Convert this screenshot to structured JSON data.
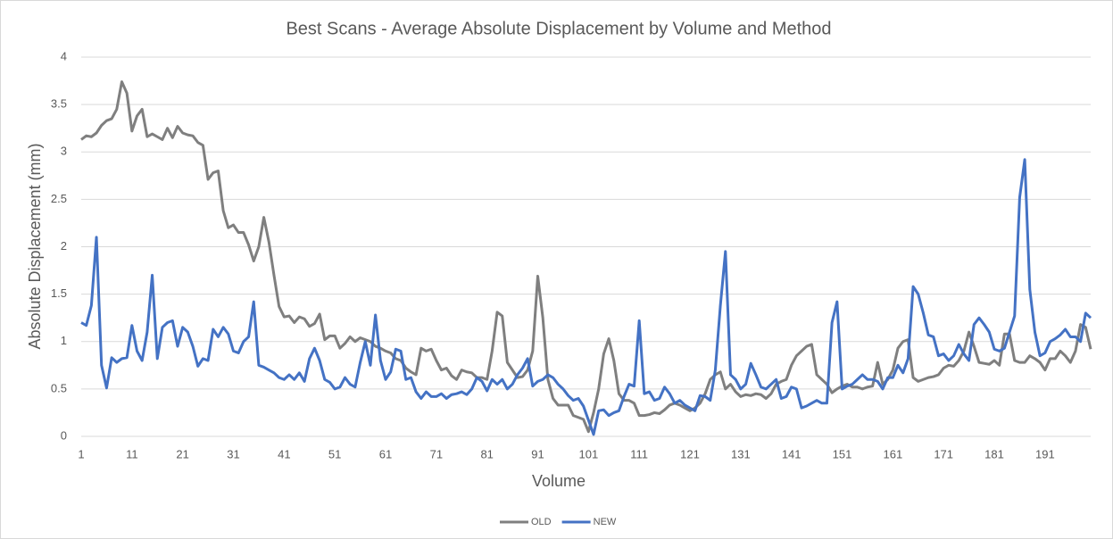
{
  "chart_data": {
    "type": "line",
    "title": "Best Scans - Average Absolute Displacement by Volume and Method",
    "xlabel": "Volume",
    "ylabel": "Absolute Displacement (mm)",
    "x": [
      1,
      2,
      3,
      4,
      5,
      6,
      7,
      8,
      9,
      10,
      11,
      12,
      13,
      14,
      15,
      16,
      17,
      18,
      19,
      20,
      21,
      22,
      23,
      24,
      25,
      26,
      27,
      28,
      29,
      30,
      31,
      32,
      33,
      34,
      35,
      36,
      37,
      38,
      39,
      40,
      41,
      42,
      43,
      44,
      45,
      46,
      47,
      48,
      49,
      50,
      51,
      52,
      53,
      54,
      55,
      56,
      57,
      58,
      59,
      60,
      61,
      62,
      63,
      64,
      65,
      66,
      67,
      68,
      69,
      70,
      71,
      72,
      73,
      74,
      75,
      76,
      77,
      78,
      79,
      80,
      81,
      82,
      83,
      84,
      85,
      86,
      87,
      88,
      89,
      90,
      91,
      92,
      93,
      94,
      95,
      96,
      97,
      98,
      99,
      100,
      101,
      102,
      103,
      104,
      105,
      106,
      107,
      108,
      109,
      110,
      111,
      112,
      113,
      114,
      115,
      116,
      117,
      118,
      119,
      120,
      121,
      122,
      123,
      124,
      125,
      126,
      127,
      128,
      129,
      130,
      131,
      132,
      133,
      134,
      135,
      136,
      137,
      138,
      139,
      140,
      141,
      142,
      143,
      144,
      145,
      146,
      147,
      148,
      149,
      150,
      151,
      152,
      153,
      154,
      155,
      156,
      157,
      158,
      159,
      160,
      161,
      162,
      163,
      164,
      165,
      166,
      167,
      168,
      169,
      170,
      171,
      172,
      173,
      174,
      175,
      176,
      177,
      178,
      179,
      180,
      181,
      182,
      183,
      184,
      185,
      186,
      187,
      188,
      189,
      190,
      191,
      192,
      193,
      194,
      195,
      196,
      197,
      198,
      199,
      200
    ],
    "series": [
      {
        "name": "OLD",
        "color": "#7f7f7f",
        "values": [
          3.13,
          3.17,
          3.16,
          3.2,
          3.28,
          3.33,
          3.35,
          3.45,
          3.74,
          3.62,
          3.22,
          3.38,
          3.45,
          3.16,
          3.19,
          3.16,
          3.13,
          3.25,
          3.15,
          3.27,
          3.2,
          3.18,
          3.17,
          3.1,
          3.07,
          2.71,
          2.78,
          2.8,
          2.38,
          2.2,
          2.23,
          2.15,
          2.15,
          2.02,
          1.85,
          2.0,
          2.31,
          2.05,
          1.7,
          1.37,
          1.26,
          1.27,
          1.2,
          1.26,
          1.24,
          1.16,
          1.19,
          1.29,
          1.02,
          1.06,
          1.06,
          0.93,
          0.98,
          1.05,
          1.0,
          1.04,
          1.02,
          1.0,
          0.95,
          0.93,
          0.9,
          0.88,
          0.82,
          0.8,
          0.72,
          0.68,
          0.65,
          0.93,
          0.9,
          0.92,
          0.8,
          0.7,
          0.72,
          0.64,
          0.6,
          0.7,
          0.68,
          0.67,
          0.62,
          0.62,
          0.6,
          0.9,
          1.31,
          1.27,
          0.78,
          0.7,
          0.62,
          0.63,
          0.7,
          0.9,
          1.69,
          1.25,
          0.6,
          0.4,
          0.33,
          0.33,
          0.33,
          0.22,
          0.2,
          0.18,
          0.05,
          0.25,
          0.5,
          0.87,
          1.03,
          0.8,
          0.45,
          0.38,
          0.38,
          0.35,
          0.22,
          0.22,
          0.23,
          0.25,
          0.24,
          0.28,
          0.33,
          0.35,
          0.33,
          0.3,
          0.27,
          0.3,
          0.35,
          0.45,
          0.6,
          0.65,
          0.68,
          0.5,
          0.55,
          0.47,
          0.42,
          0.44,
          0.43,
          0.45,
          0.44,
          0.4,
          0.45,
          0.55,
          0.58,
          0.6,
          0.75,
          0.85,
          0.9,
          0.95,
          0.97,
          0.65,
          0.6,
          0.55,
          0.46,
          0.5,
          0.53,
          0.55,
          0.52,
          0.52,
          0.5,
          0.52,
          0.53,
          0.78,
          0.55,
          0.6,
          0.7,
          0.93,
          1.0,
          1.02,
          0.62,
          0.58,
          0.6,
          0.62,
          0.63,
          0.65,
          0.72,
          0.75,
          0.74,
          0.8,
          0.9,
          1.1,
          0.95,
          0.78,
          0.77,
          0.76,
          0.8,
          0.75,
          1.08,
          1.08,
          0.8,
          0.78,
          0.78,
          0.85,
          0.82,
          0.78,
          0.7,
          0.82,
          0.82,
          0.9,
          0.85,
          0.78,
          0.9,
          1.18,
          1.15,
          0.92
        ]
      },
      {
        "name": "NEW",
        "color": "#4472c4",
        "values": [
          1.2,
          1.17,
          1.38,
          2.1,
          0.75,
          0.51,
          0.83,
          0.78,
          0.82,
          0.83,
          1.17,
          0.9,
          0.8,
          1.1,
          1.7,
          0.82,
          1.15,
          1.2,
          1.22,
          0.95,
          1.15,
          1.1,
          0.95,
          0.74,
          0.82,
          0.8,
          1.13,
          1.05,
          1.15,
          1.08,
          0.9,
          0.88,
          1.0,
          1.05,
          1.42,
          0.75,
          0.73,
          0.7,
          0.67,
          0.62,
          0.6,
          0.65,
          0.6,
          0.67,
          0.58,
          0.82,
          0.93,
          0.8,
          0.6,
          0.57,
          0.5,
          0.52,
          0.62,
          0.55,
          0.52,
          0.78,
          1.0,
          0.75,
          1.28,
          0.8,
          0.6,
          0.68,
          0.92,
          0.9,
          0.6,
          0.62,
          0.47,
          0.4,
          0.47,
          0.42,
          0.42,
          0.45,
          0.4,
          0.44,
          0.45,
          0.47,
          0.44,
          0.5,
          0.62,
          0.58,
          0.48,
          0.6,
          0.55,
          0.6,
          0.5,
          0.55,
          0.65,
          0.72,
          0.82,
          0.53,
          0.58,
          0.6,
          0.65,
          0.62,
          0.55,
          0.5,
          0.43,
          0.38,
          0.4,
          0.32,
          0.17,
          0.02,
          0.27,
          0.28,
          0.22,
          0.25,
          0.27,
          0.42,
          0.55,
          0.53,
          1.22,
          0.45,
          0.47,
          0.38,
          0.4,
          0.52,
          0.45,
          0.35,
          0.38,
          0.33,
          0.3,
          0.27,
          0.43,
          0.42,
          0.38,
          0.7,
          1.38,
          1.95,
          0.65,
          0.6,
          0.5,
          0.55,
          0.77,
          0.65,
          0.52,
          0.5,
          0.55,
          0.6,
          0.4,
          0.42,
          0.52,
          0.5,
          0.3,
          0.32,
          0.35,
          0.38,
          0.35,
          0.35,
          1.2,
          1.42,
          0.5,
          0.53,
          0.55,
          0.6,
          0.65,
          0.6,
          0.6,
          0.58,
          0.5,
          0.62,
          0.62,
          0.75,
          0.67,
          0.82,
          1.58,
          1.5,
          1.3,
          1.07,
          1.05,
          0.85,
          0.87,
          0.8,
          0.85,
          0.97,
          0.87,
          0.8,
          1.18,
          1.25,
          1.18,
          1.1,
          0.92,
          0.9,
          0.93,
          1.1,
          1.27,
          2.52,
          2.92,
          1.55,
          1.1,
          0.85,
          0.88,
          1.0,
          1.03,
          1.07,
          1.13,
          1.05,
          1.05,
          1.0,
          1.3,
          1.25
        ]
      }
    ],
    "xlim": [
      1,
      200
    ],
    "xticks": [
      1,
      11,
      21,
      31,
      41,
      51,
      61,
      71,
      81,
      91,
      101,
      111,
      121,
      131,
      141,
      151,
      161,
      171,
      181,
      191
    ],
    "ylim": [
      0,
      4
    ],
    "yticks": [
      0,
      0.5,
      1,
      1.5,
      2,
      2.5,
      3,
      3.5,
      4
    ],
    "grid": true,
    "legend": "bottom"
  }
}
